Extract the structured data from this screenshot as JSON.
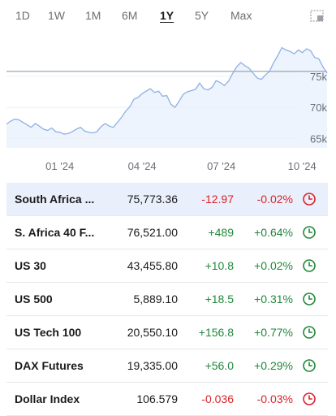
{
  "range_tabs": [
    {
      "label": "1D",
      "active": false
    },
    {
      "label": "1W",
      "active": false
    },
    {
      "label": "1M",
      "active": false
    },
    {
      "label": "6M",
      "active": false
    },
    {
      "label": "1Y",
      "active": true
    },
    {
      "label": "5Y",
      "active": false
    },
    {
      "label": "Max",
      "active": false
    }
  ],
  "chart_data": {
    "type": "area",
    "x_ticks": [
      "01 '24",
      "04 '24",
      "07 '24",
      "10 '24"
    ],
    "y_ticks": [
      "65k",
      "70k",
      "75k"
    ],
    "ylim": [
      63500,
      81500
    ],
    "reference_value": 75773,
    "line_color": "#8db0e6",
    "fill_color": "#eef4fd",
    "series": [
      {
        "values": [
          67300,
          67800,
          68100,
          68000,
          67600,
          67200,
          66800,
          67400,
          67000,
          66500,
          66300,
          66700,
          66100,
          66000,
          65700,
          65800,
          66100,
          66500,
          66800,
          66200,
          66000,
          65900,
          66100,
          66900,
          67400,
          67000,
          66800,
          67600,
          68400,
          69400,
          70100,
          71300,
          71600,
          72200,
          72600,
          73000,
          72400,
          72600,
          71800,
          71900,
          70500,
          70000,
          71000,
          72100,
          72500,
          72700,
          72900,
          73900,
          73000,
          72800,
          73200,
          74300,
          74000,
          73500,
          74200,
          75400,
          76500,
          77200,
          76700,
          76300,
          75500,
          74700,
          74500,
          75200,
          75800,
          77200,
          78300,
          79600,
          79200,
          79000,
          78600,
          79200,
          78800,
          79400,
          79100,
          78000,
          77800,
          76500,
          75500
        ]
      }
    ]
  },
  "quotes": [
    {
      "name": "South Africa ...",
      "price": "75,773.36",
      "change": "-12.97",
      "percent": "-0.02%",
      "direction": "down",
      "highlighted": true
    },
    {
      "name": "S. Africa 40 F...",
      "price": "76,521.00",
      "change": "+489",
      "percent": "+0.64%",
      "direction": "up",
      "highlighted": false
    },
    {
      "name": "US 30",
      "price": "43,455.80",
      "change": "+10.8",
      "percent": "+0.02%",
      "direction": "up",
      "highlighted": false
    },
    {
      "name": "US 500",
      "price": "5,889.10",
      "change": "+18.5",
      "percent": "+0.31%",
      "direction": "up",
      "highlighted": false
    },
    {
      "name": "US Tech 100",
      "price": "20,550.10",
      "change": "+156.8",
      "percent": "+0.77%",
      "direction": "up",
      "highlighted": false
    },
    {
      "name": "DAX Futures",
      "price": "19,335.00",
      "change": "+56.0",
      "percent": "+0.29%",
      "direction": "up",
      "highlighted": false
    },
    {
      "name": "Dollar Index",
      "price": "106.579",
      "change": "-0.036",
      "percent": "-0.03%",
      "direction": "down",
      "highlighted": false
    }
  ],
  "colors": {
    "up": "#20883b",
    "down": "#d8232a",
    "clock_up": "#20883b",
    "clock_down": "#d8232a",
    "muted": "#6b6f76"
  }
}
